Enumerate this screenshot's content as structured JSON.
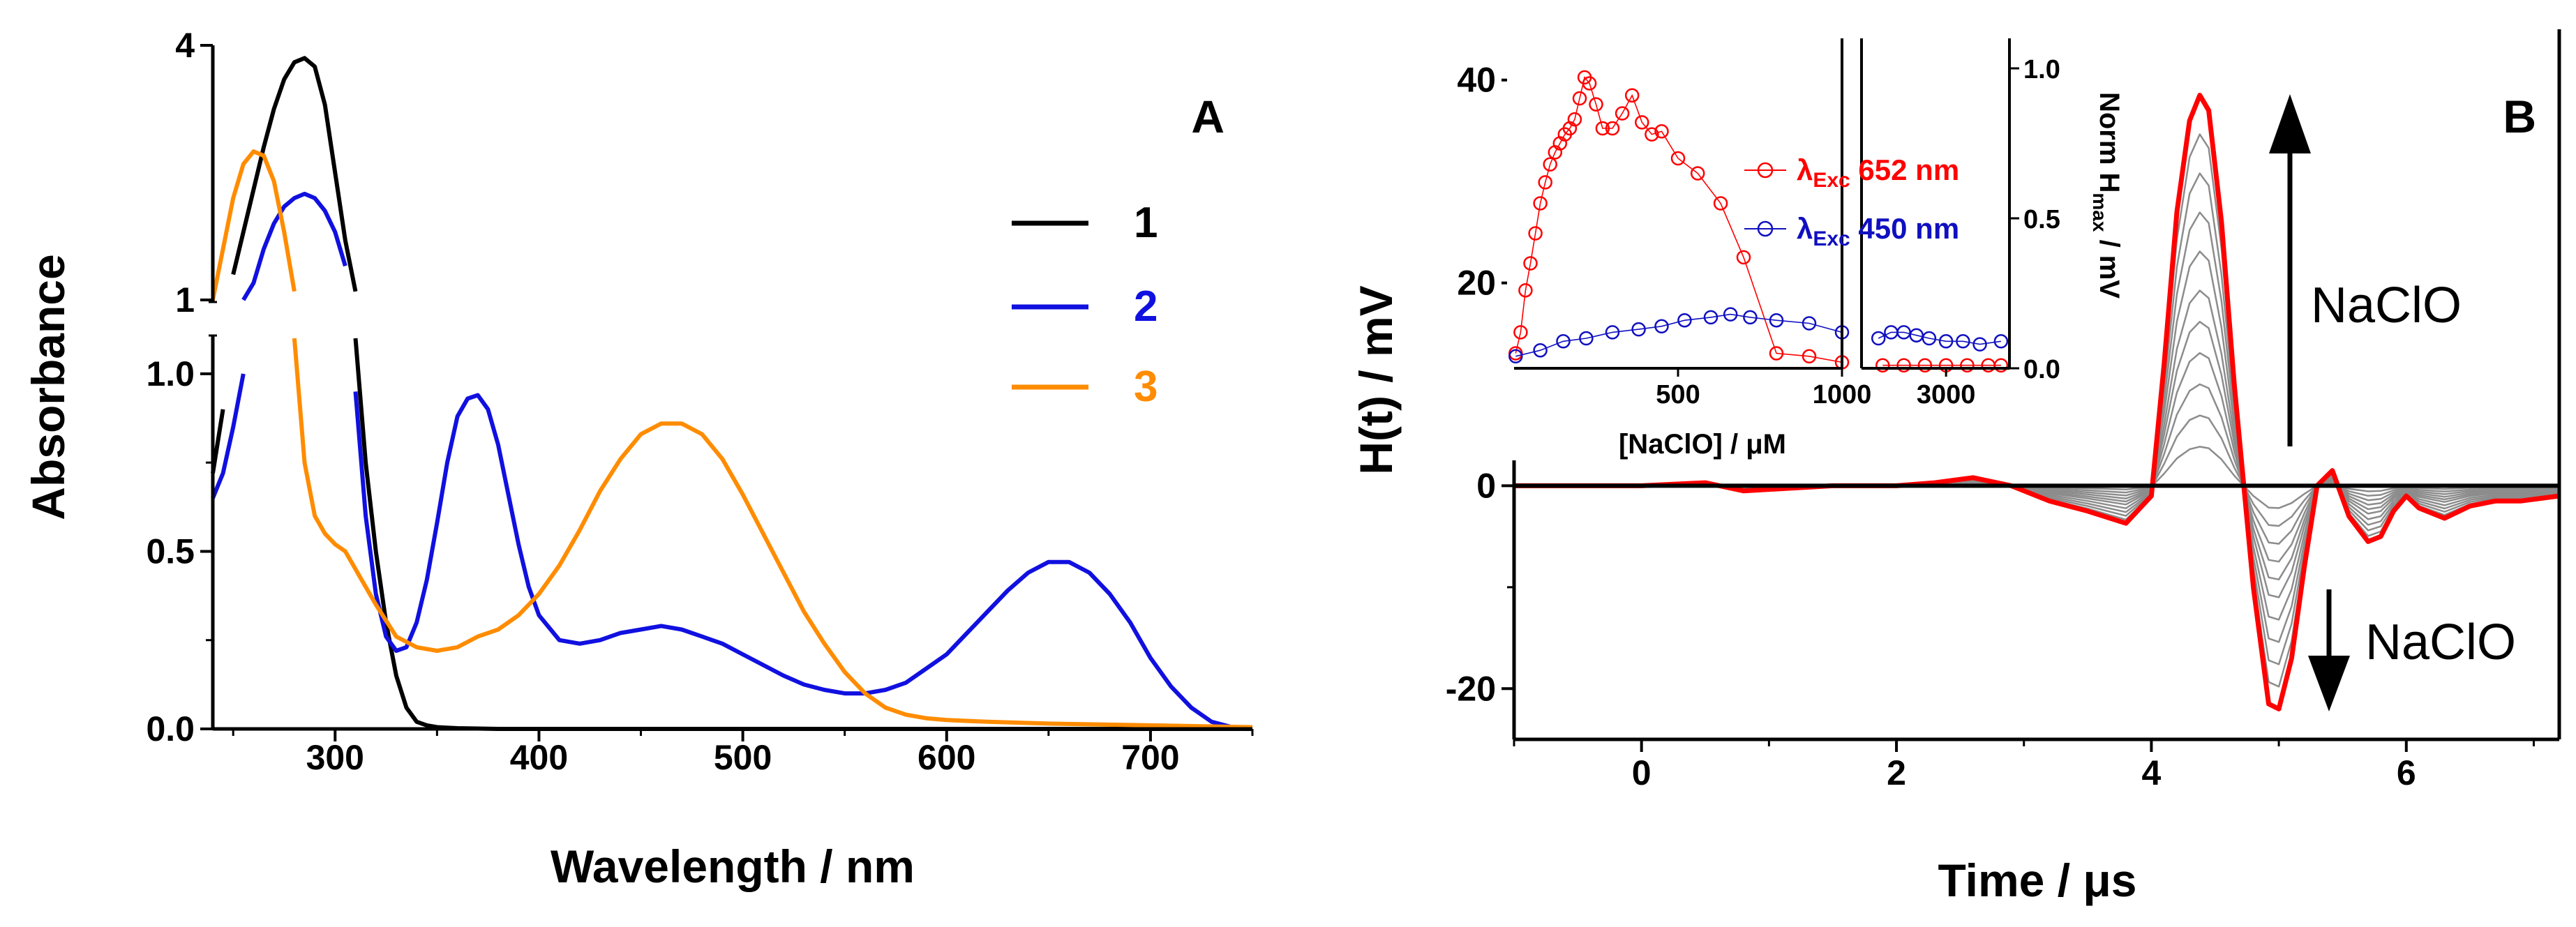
{
  "panels": [
    {
      "id": "A",
      "chart_data": {
        "type": "line",
        "panel_label": "A",
        "xlabel": "Wavelength / nm",
        "ylabel": "Absorbance",
        "xlim": [
          240,
          750
        ],
        "y_segments": [
          {
            "range": [
              0,
              1.1
            ],
            "ticks": [
              "0.0",
              "0.5",
              "1.0"
            ]
          },
          {
            "range": [
              1,
              4
            ],
            "ticks": [
              "1",
              "4"
            ]
          }
        ],
        "x_ticks": [
          "300",
          "400",
          "500",
          "600",
          "700"
        ],
        "legend": {
          "position": "right",
          "entries": [
            "1",
            "2",
            "3"
          ]
        },
        "series": [
          {
            "name": "1",
            "color": "#000000",
            "x": [
              240,
              245,
              250,
              255,
              260,
              265,
              270,
              275,
              280,
              285,
              290,
              295,
              300,
              305,
              310,
              315,
              320,
              325,
              330,
              335,
              340,
              345,
              350,
              360,
              380,
              400,
              450,
              500,
              550,
              600,
              650,
              700,
              750
            ],
            "y": [
              0.72,
              0.9,
              1.3,
              1.8,
              2.3,
              2.8,
              3.25,
              3.6,
              3.8,
              3.85,
              3.75,
              3.3,
              2.5,
              1.7,
              1.1,
              0.75,
              0.5,
              0.3,
              0.15,
              0.06,
              0.02,
              0.01,
              0.005,
              0.002,
              0.0,
              0.0,
              0.0,
              0.0,
              0.0,
              0.0,
              0.0,
              0.0,
              0.0
            ]
          },
          {
            "name": "2",
            "color": "#1010e0",
            "x": [
              240,
              245,
              250,
              255,
              260,
              265,
              270,
              275,
              280,
              285,
              290,
              295,
              300,
              305,
              310,
              315,
              320,
              325,
              330,
              335,
              340,
              345,
              350,
              355,
              360,
              365,
              370,
              375,
              380,
              385,
              390,
              395,
              400,
              410,
              420,
              430,
              440,
              450,
              460,
              470,
              480,
              490,
              500,
              510,
              520,
              530,
              540,
              550,
              560,
              570,
              580,
              590,
              600,
              610,
              620,
              630,
              640,
              650,
              660,
              670,
              680,
              690,
              700,
              710,
              720,
              730,
              740,
              745
            ],
            "y": [
              0.65,
              0.72,
              0.85,
              1.0,
              1.2,
              1.6,
              1.9,
              2.1,
              2.2,
              2.25,
              2.2,
              2.05,
              1.8,
              1.4,
              0.95,
              0.6,
              0.38,
              0.26,
              0.22,
              0.23,
              0.3,
              0.42,
              0.58,
              0.75,
              0.88,
              0.93,
              0.94,
              0.9,
              0.8,
              0.66,
              0.52,
              0.4,
              0.32,
              0.25,
              0.24,
              0.25,
              0.27,
              0.28,
              0.29,
              0.28,
              0.26,
              0.24,
              0.21,
              0.18,
              0.15,
              0.125,
              0.11,
              0.1,
              0.1,
              0.11,
              0.13,
              0.17,
              0.21,
              0.27,
              0.33,
              0.39,
              0.44,
              0.47,
              0.47,
              0.44,
              0.38,
              0.3,
              0.2,
              0.12,
              0.06,
              0.02,
              0.005,
              0.0
            ]
          },
          {
            "name": "3",
            "color": "#ff8c00",
            "x": [
              240,
              245,
              250,
              255,
              260,
              265,
              270,
              275,
              280,
              285,
              290,
              295,
              300,
              305,
              310,
              320,
              330,
              340,
              350,
              360,
              370,
              380,
              390,
              400,
              410,
              420,
              430,
              440,
              450,
              460,
              470,
              480,
              490,
              500,
              510,
              520,
              530,
              540,
              550,
              560,
              570,
              580,
              590,
              600,
              620,
              650,
              700,
              750
            ],
            "y": [
              1.0,
              1.6,
              2.2,
              2.6,
              2.75,
              2.7,
              2.4,
              1.8,
              1.1,
              0.75,
              0.6,
              0.55,
              0.52,
              0.5,
              0.45,
              0.35,
              0.26,
              0.23,
              0.22,
              0.23,
              0.26,
              0.28,
              0.32,
              0.38,
              0.46,
              0.56,
              0.67,
              0.76,
              0.83,
              0.86,
              0.86,
              0.83,
              0.76,
              0.66,
              0.55,
              0.44,
              0.33,
              0.24,
              0.16,
              0.1,
              0.06,
              0.04,
              0.03,
              0.025,
              0.02,
              0.015,
              0.01,
              0.005
            ]
          }
        ]
      }
    },
    {
      "id": "B",
      "chart_data": {
        "type": "line",
        "panel_label": "B",
        "xlabel": "Time / μs",
        "ylabel": "H(t) / mV",
        "xlim": [
          -1,
          7.2
        ],
        "ylim": [
          -25,
          45
        ],
        "x_ticks": [
          0,
          2,
          4,
          6
        ],
        "y_ticks": [
          -20,
          0,
          20,
          40
        ],
        "annotations": [
          "NaClO",
          "NaClO"
        ],
        "waveform_shape": {
          "t": [
            -1,
            0,
            0.5,
            0.8,
            1.5,
            2.0,
            2.3,
            2.6,
            2.9,
            3.2,
            3.5,
            3.8,
            4.0,
            4.1,
            4.2,
            4.3,
            4.38,
            4.45,
            4.55,
            4.65,
            4.8,
            4.92,
            5.0,
            5.1,
            5.2,
            5.3,
            5.42,
            5.55,
            5.7,
            5.8,
            5.9,
            6.0,
            6.1,
            6.3,
            6.5,
            6.7,
            6.9,
            7.2
          ],
          "v": [
            0,
            0,
            0.3,
            -0.5,
            0,
            0,
            0.3,
            0.8,
            0,
            -1.5,
            -2.5,
            -3.7,
            -1,
            12,
            27,
            36,
            38.5,
            37,
            26,
            10,
            -10,
            -21.5,
            -22,
            -17,
            -8,
            0,
            1.5,
            -3,
            -5.5,
            -5,
            -2.5,
            -1,
            -2.2,
            -3.2,
            -2,
            -1.5,
            -1.5,
            -1
          ]
        },
        "series": [
          {
            "name": "max",
            "color": "#ff0000",
            "scale": 1.0
          },
          {
            "name": "gray-1",
            "color": "#8c8c8c",
            "scale": 0.9
          },
          {
            "name": "gray-2",
            "color": "#8c8c8c",
            "scale": 0.8
          },
          {
            "name": "gray-3",
            "color": "#8c8c8c",
            "scale": 0.7
          },
          {
            "name": "gray-4",
            "color": "#8c8c8c",
            "scale": 0.6
          },
          {
            "name": "gray-5",
            "color": "#8c8c8c",
            "scale": 0.5
          },
          {
            "name": "gray-6",
            "color": "#8c8c8c",
            "scale": 0.42
          },
          {
            "name": "gray-7",
            "color": "#8c8c8c",
            "scale": 0.34
          },
          {
            "name": "gray-8",
            "color": "#8c8c8c",
            "scale": 0.26
          },
          {
            "name": "gray-9",
            "color": "#8c8c8c",
            "scale": 0.18
          },
          {
            "name": "gray-10",
            "color": "#8c8c8c",
            "scale": 0.1
          },
          {
            "name": "blank",
            "color": "#000000",
            "scale": 0.0
          }
        ],
        "inset": {
          "type": "scatter",
          "xlabel": "[NaClO] / μM",
          "ylabel": "Norm H",
          "ylabel_sub": "max",
          "ylabel_suffix": " / mV",
          "ylim": [
            0,
            1.1
          ],
          "y_ticks": [
            "0.0",
            "0.5",
            "1.0"
          ],
          "segments": [
            {
              "range": [
                0,
                1000
              ],
              "ticks": [
                "500",
                "1000"
              ]
            },
            {
              "range": [
                1000,
                4500
              ],
              "ticks": [
                "3000"
              ]
            }
          ],
          "legend": [
            {
              "symbol": "λ",
              "sub": "Exc",
              "value": "652 nm",
              "color": "#ff0000"
            },
            {
              "symbol": "λ",
              "sub": "Exc",
              "value": "450 nm",
              "color": "#1010c0"
            }
          ],
          "series": [
            {
              "name": "652 nm",
              "color": "#ff0000",
              "x": [
                5,
                20,
                35,
                50,
                65,
                80,
                95,
                110,
                125,
                140,
                155,
                170,
                185,
                200,
                215,
                230,
                250,
                270,
                300,
                330,
                360,
                390,
                420,
                450,
                500,
                560,
                630,
                700,
                800,
                900,
                1000,
                1500,
                2000,
                2500,
                3000,
                3500,
                4000,
                4300
              ],
              "y": [
                0.05,
                0.12,
                0.26,
                0.35,
                0.45,
                0.55,
                0.62,
                0.68,
                0.72,
                0.75,
                0.78,
                0.8,
                0.83,
                0.9,
                0.97,
                0.95,
                0.88,
                0.8,
                0.8,
                0.85,
                0.91,
                0.82,
                0.78,
                0.79,
                0.7,
                0.65,
                0.55,
                0.37,
                0.05,
                0.04,
                0.02,
                0.01,
                0.01,
                0.01,
                0.01,
                0.01,
                0.01,
                0.01
              ]
            },
            {
              "name": "450 nm",
              "color": "#1010c0",
              "x": [
                5,
                80,
                150,
                220,
                300,
                380,
                450,
                520,
                600,
                660,
                720,
                800,
                900,
                1000,
                1400,
                1700,
                2000,
                2300,
                2600,
                3000,
                3400,
                3800,
                4300
              ],
              "y": [
                0.04,
                0.06,
                0.09,
                0.1,
                0.12,
                0.13,
                0.14,
                0.16,
                0.17,
                0.18,
                0.17,
                0.16,
                0.15,
                0.12,
                0.1,
                0.12,
                0.12,
                0.11,
                0.1,
                0.09,
                0.09,
                0.08,
                0.09
              ]
            }
          ]
        }
      }
    }
  ]
}
